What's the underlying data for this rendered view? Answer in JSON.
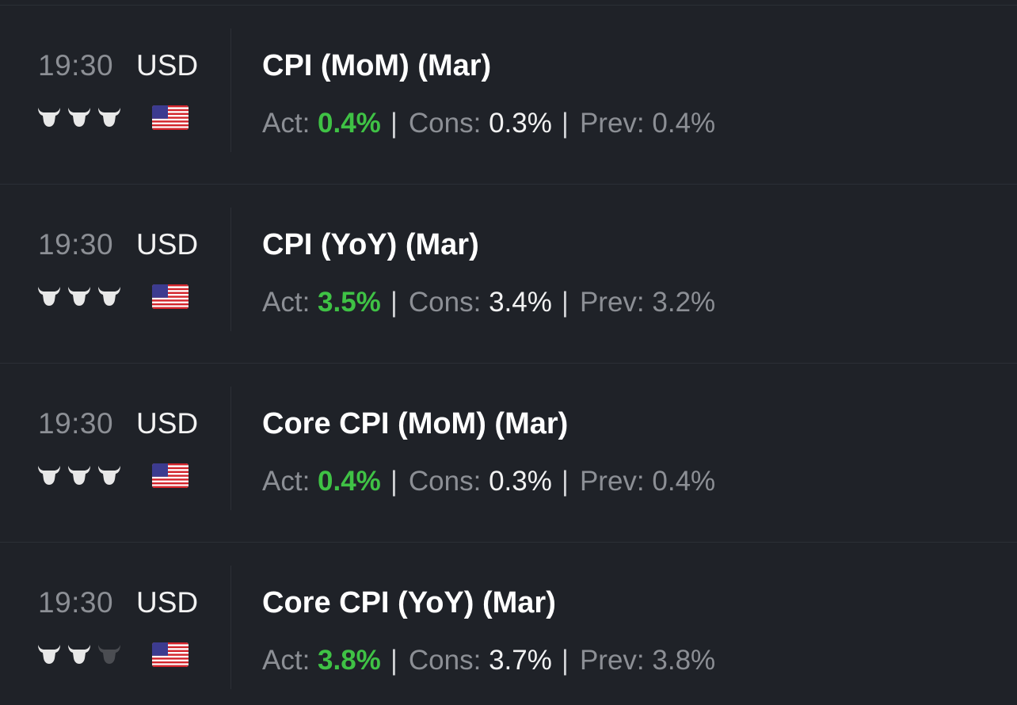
{
  "colors": {
    "background": "#1f2228",
    "actual_green": "#3fc245",
    "muted_text": "#8c8f95",
    "bright_text": "#f2f2f2",
    "bull_active": "#e8e8e8",
    "bull_inactive": "#4b4d52"
  },
  "events": [
    {
      "time": "19:30",
      "currency": "USD",
      "importance": 3,
      "flag_icon": "us-flag-icon",
      "title": "CPI (MoM) (Mar)",
      "act_label": "Act:",
      "act_value": "0.4%",
      "cons_label": "Cons:",
      "cons_value": "0.3%",
      "prev_label": "Prev:",
      "prev_value": "0.4%",
      "separator": "|"
    },
    {
      "time": "19:30",
      "currency": "USD",
      "importance": 3,
      "flag_icon": "us-flag-icon",
      "title": "CPI (YoY) (Mar)",
      "act_label": "Act:",
      "act_value": "3.5%",
      "cons_label": "Cons:",
      "cons_value": "3.4%",
      "prev_label": "Prev:",
      "prev_value": "3.2%",
      "separator": "|"
    },
    {
      "time": "19:30",
      "currency": "USD",
      "importance": 3,
      "flag_icon": "us-flag-icon",
      "title": "Core CPI (MoM) (Mar)",
      "act_label": "Act:",
      "act_value": "0.4%",
      "cons_label": "Cons:",
      "cons_value": "0.3%",
      "prev_label": "Prev:",
      "prev_value": "0.4%",
      "separator": "|"
    },
    {
      "time": "19:30",
      "currency": "USD",
      "importance": 2,
      "flag_icon": "us-flag-icon",
      "title": "Core CPI (YoY) (Mar)",
      "act_label": "Act:",
      "act_value": "3.8%",
      "cons_label": "Cons:",
      "cons_value": "3.7%",
      "prev_label": "Prev:",
      "prev_value": "3.8%",
      "separator": "|"
    }
  ]
}
